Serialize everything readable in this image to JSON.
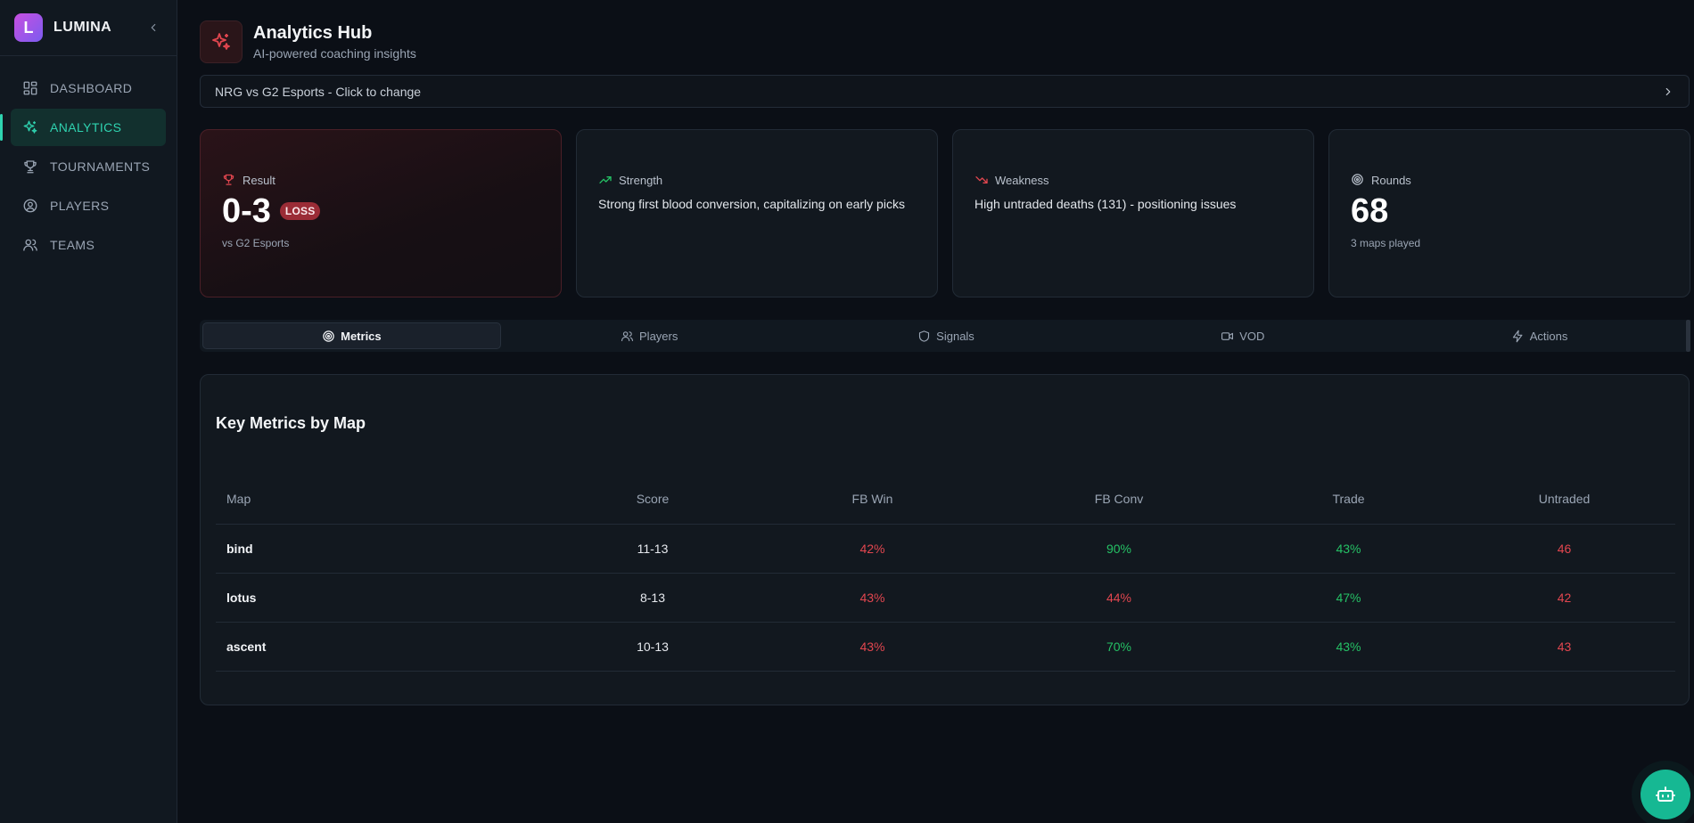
{
  "brand": {
    "letter": "L",
    "name": "LUMINA"
  },
  "nav": [
    {
      "label": "DASHBOARD",
      "icon": "grid-icon"
    },
    {
      "label": "ANALYTICS",
      "icon": "sparkles-icon",
      "active": true
    },
    {
      "label": "TOURNAMENTS",
      "icon": "trophy-icon"
    },
    {
      "label": "PLAYERS",
      "icon": "user-circle-icon"
    },
    {
      "label": "TEAMS",
      "icon": "users-icon"
    }
  ],
  "header": {
    "title": "Analytics Hub",
    "subtitle": "AI-powered coaching insights"
  },
  "match_select": {
    "label": "NRG vs G2 Esports - Click to change"
  },
  "cards": {
    "result": {
      "label": "Result",
      "value": "0-3",
      "badge": "LOSS",
      "note": "vs G2 Esports"
    },
    "strength": {
      "label": "Strength",
      "text": "Strong first blood conversion, capitalizing on early picks"
    },
    "weakness": {
      "label": "Weakness",
      "text": "High untraded deaths (131) - positioning issues"
    },
    "rounds": {
      "label": "Rounds",
      "value": "68",
      "note": "3 maps played"
    }
  },
  "tabs": [
    {
      "label": "Metrics",
      "icon": "target-icon",
      "active": true
    },
    {
      "label": "Players",
      "icon": "users-icon"
    },
    {
      "label": "Signals",
      "icon": "shield-icon"
    },
    {
      "label": "VOD",
      "icon": "video-icon"
    },
    {
      "label": "Actions",
      "icon": "bolt-icon"
    }
  ],
  "metrics": {
    "title": "Key Metrics by Map",
    "columns": [
      "Map",
      "Score",
      "FB Win",
      "FB Conv",
      "Trade",
      "Untraded"
    ],
    "rows": [
      {
        "map": "bind",
        "score": "11-13",
        "fb_win": "42%",
        "fb_conv": "90%",
        "trade": "43%",
        "untraded": "46"
      },
      {
        "map": "lotus",
        "score": "8-13",
        "fb_win": "43%",
        "fb_conv": "44%",
        "trade": "47%",
        "untraded": "42"
      },
      {
        "map": "ascent",
        "score": "10-13",
        "fb_win": "43%",
        "fb_conv": "70%",
        "trade": "43%",
        "untraded": "43"
      }
    ]
  },
  "colors": {
    "accent": "#2fd3b0",
    "negative": "#e2464f",
    "positive": "#25c165",
    "loss_badge": "#9b2c36"
  }
}
